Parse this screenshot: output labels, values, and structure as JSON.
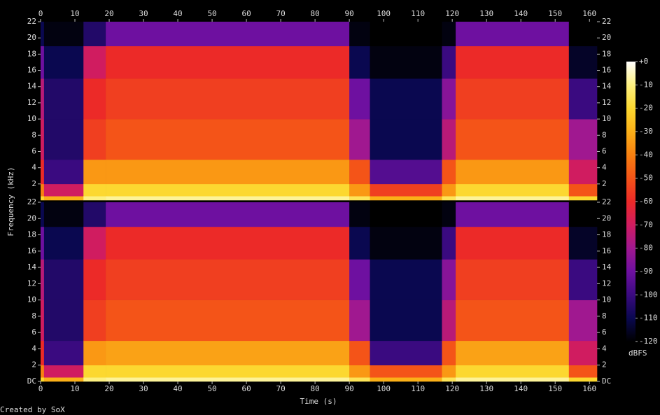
{
  "chart_data": {
    "type": "heatmap",
    "x_label": "Time (s)",
    "y_label": "Frequency (kHz)",
    "footer": "Created by SoX",
    "xlim": [
      0,
      162.2
    ],
    "xticks": [
      0,
      10,
      20,
      30,
      40,
      50,
      60,
      70,
      80,
      90,
      100,
      110,
      120,
      130,
      140,
      150,
      160
    ],
    "ylim": [
      0,
      22
    ],
    "x_edges": [
      0,
      1,
      12.5,
      19,
      90,
      96,
      117,
      121,
      154,
      162.2
    ],
    "y_edges": [
      0,
      0.5,
      2,
      5,
      10,
      15,
      19,
      22
    ],
    "channels": [
      {
        "yticks": [
          2,
          4,
          6,
          8,
          10,
          12,
          14,
          16,
          18,
          20,
          22
        ],
        "values": [
          [
            -20,
            -40,
            -60,
            -70,
            -75,
            -90,
            -110
          ],
          [
            -30,
            -70,
            -100,
            -105,
            -105,
            -110,
            -118
          ],
          [
            -10,
            -20,
            -35,
            -55,
            -60,
            -70,
            -105
          ],
          [
            -8,
            -20,
            -35,
            -50,
            -55,
            -60,
            -90
          ],
          [
            -15,
            -35,
            -50,
            -80,
            -90,
            -110,
            -118
          ],
          [
            -30,
            -55,
            -95,
            -110,
            -110,
            -118,
            -120
          ],
          [
            -15,
            -35,
            -50,
            -75,
            -85,
            -100,
            -118
          ],
          [
            -8,
            -20,
            -35,
            -50,
            -55,
            -60,
            -90
          ],
          [
            -20,
            -50,
            -70,
            -80,
            -100,
            -115,
            -120
          ]
        ]
      },
      {
        "yticks": [
          {
            "value": 0,
            "label": "DC"
          },
          2,
          4,
          6,
          8,
          10,
          12,
          14,
          16,
          18,
          20,
          22
        ],
        "values": [
          [
            -20,
            -40,
            -60,
            -70,
            -75,
            -90,
            -110
          ],
          [
            -30,
            -70,
            -100,
            -105,
            -105,
            -110,
            -118
          ],
          [
            -10,
            -20,
            -35,
            -55,
            -60,
            -70,
            -105
          ],
          [
            -8,
            -20,
            -33,
            -50,
            -55,
            -60,
            -90
          ],
          [
            -15,
            -35,
            -50,
            -80,
            -90,
            -110,
            -118
          ],
          [
            -30,
            -50,
            -100,
            -110,
            -110,
            -118,
            -120
          ],
          [
            -15,
            -35,
            -50,
            -75,
            -85,
            -100,
            -118
          ],
          [
            -8,
            -20,
            -33,
            -50,
            -55,
            -60,
            -90
          ],
          [
            -20,
            -50,
            -70,
            -80,
            -100,
            -115,
            -120
          ]
        ]
      }
    ],
    "colorbar": {
      "label": "dBFS",
      "zlim": [
        -120,
        0
      ],
      "ticks": [
        {
          "value": 0,
          "label": "+0"
        },
        -10,
        -20,
        -30,
        -40,
        -50,
        -60,
        -70,
        -80,
        -90,
        -100,
        -110,
        -120
      ],
      "colormap": [
        "#000000",
        "#0a0850",
        "#3a0a80",
        "#6e10a0",
        "#a01890",
        "#d01c60",
        "#ec2a28",
        "#f45418",
        "#f88010",
        "#fbb018",
        "#fcd830",
        "#fdf080",
        "#ffffff"
      ]
    }
  }
}
